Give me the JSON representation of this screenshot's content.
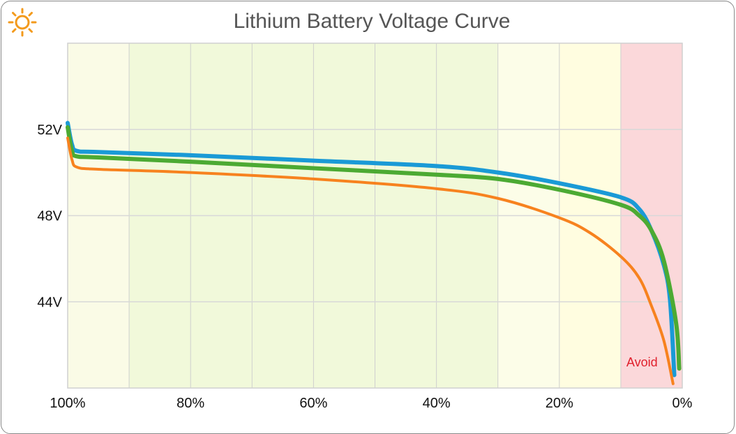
{
  "chart_data": {
    "type": "line",
    "title": "Lithium Battery Voltage Curve",
    "xlabel": "",
    "ylabel": "",
    "xlim": [
      100,
      0
    ],
    "ylim": [
      40,
      56
    ],
    "x_ticks": [
      "100%",
      "80%",
      "60%",
      "40%",
      "20%",
      "0%"
    ],
    "x_tick_values": [
      100,
      80,
      60,
      40,
      20,
      0
    ],
    "y_ticks": [
      "44V",
      "48V",
      "52V"
    ],
    "y_tick_values": [
      44,
      48,
      52
    ],
    "grid": true,
    "zones": [
      {
        "from": 100,
        "to": 90,
        "color": "#fafbe6"
      },
      {
        "from": 90,
        "to": 30,
        "color": "#f1f9da"
      },
      {
        "from": 30,
        "to": 20,
        "color": "#fcfde8"
      },
      {
        "from": 20,
        "to": 10,
        "color": "#fffde0"
      },
      {
        "from": 10,
        "to": 0,
        "color": "#fbd8da",
        "label": "Avoid",
        "label_color": "#e0202c"
      }
    ],
    "series": [
      {
        "color": "#1a9ad6",
        "x": [
          100,
          99.3,
          98.5,
          95,
          80,
          60,
          40,
          30,
          20,
          10,
          7,
          5,
          3,
          2,
          1.3
        ],
        "y": [
          52.3,
          51.3,
          51.0,
          50.95,
          50.8,
          50.55,
          50.3,
          50.0,
          49.5,
          48.85,
          48.3,
          47.3,
          45.7,
          44.1,
          40.6
        ]
      },
      {
        "color": "#4caa33",
        "x": [
          100,
          99.3,
          98.5,
          95,
          80,
          60,
          40,
          30,
          20,
          10,
          7,
          5,
          3,
          1,
          0.5
        ],
        "y": [
          52.1,
          51.0,
          50.75,
          50.7,
          50.5,
          50.2,
          49.9,
          49.7,
          49.2,
          48.5,
          48.0,
          47.3,
          45.9,
          43.0,
          40.9
        ]
      },
      {
        "color": "#f7821e",
        "x": [
          100,
          99.3,
          98.5,
          95,
          80,
          60,
          40,
          30,
          20,
          15,
          10,
          7,
          5,
          3,
          1.5
        ],
        "y": [
          51.6,
          50.6,
          50.25,
          50.15,
          50.0,
          49.7,
          49.25,
          48.8,
          47.9,
          47.2,
          46.1,
          45.1,
          43.8,
          42.2,
          40.2
        ]
      }
    ]
  },
  "icons": {
    "logo": "sun-icon",
    "logo_color": "#f39a1c"
  }
}
